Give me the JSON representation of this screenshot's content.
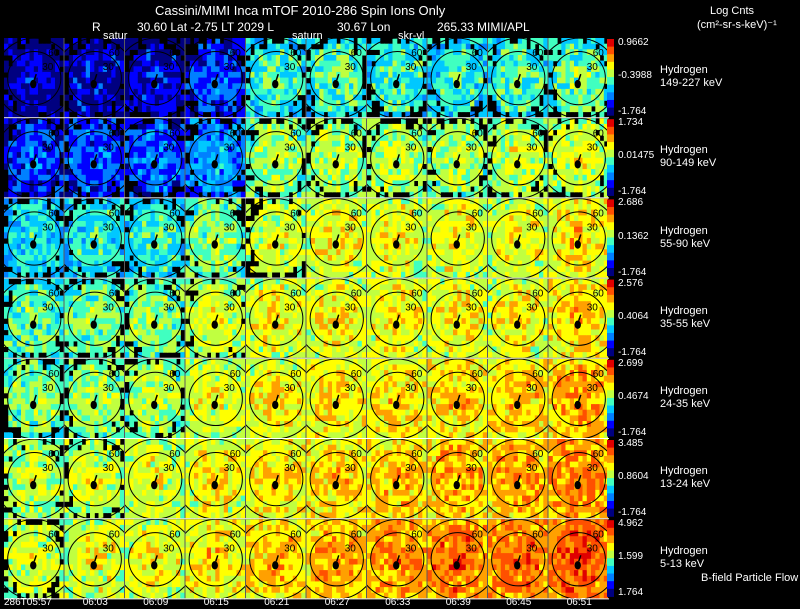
{
  "header": {
    "title": "Cassini/MIMI Inca mTOF  2010-286   Spin    Ions Only",
    "line2_r": "R",
    "line2_coords": "30.60 Lat -2.75 LT 2029 L",
    "line2_lon": "30.67 Lon",
    "line2_credit": "265.33  MIMI/APL",
    "overlay_saturn_1": "satur",
    "overlay_saturn_2": "saturn",
    "overlay_skr": "skr-vl"
  },
  "units": {
    "line1": "Log Cnts",
    "line2": "(cm²-sr-s-keV)⁻¹"
  },
  "footer_note": "B-field Particle Flow",
  "colors": {
    "scale": [
      "#000080",
      "#0000ff",
      "#0080ff",
      "#00c8ff",
      "#40ffc0",
      "#c0ff40",
      "#ffff00",
      "#ffa000",
      "#ff5000",
      "#e00000"
    ]
  },
  "chart_data": {
    "type": "heatmap",
    "description_units": "log counts (cm^2-sr-s-keV)^-1",
    "times": [
      "286T05:57",
      "06:03",
      "06:09",
      "06:15",
      "06:21",
      "06:27",
      "06:33",
      "06:39",
      "06:45",
      "06:51"
    ],
    "circle_labels": [
      "30",
      "60"
    ],
    "bands": [
      {
        "species": "Hydrogen",
        "energy": "149-227 keV",
        "max": "0.9662",
        "mid": "-0.3988",
        "min": "-1.764",
        "levels": [
          0.08,
          0.1,
          0.1,
          0.18,
          0.42,
          0.45,
          0.42,
          0.4,
          0.44,
          0.46
        ]
      },
      {
        "species": "Hydrogen",
        "energy": "90-149 keV",
        "max": "1.734",
        "mid": "0.01475",
        "min": "-1.764",
        "levels": [
          0.18,
          0.2,
          0.22,
          0.28,
          0.52,
          0.55,
          0.55,
          0.55,
          0.56,
          0.58
        ]
      },
      {
        "species": "Hydrogen",
        "energy": "55-90 keV",
        "max": "2.686",
        "mid": "0.1362",
        "min": "-1.764",
        "levels": [
          0.38,
          0.4,
          0.42,
          0.5,
          0.58,
          0.62,
          0.62,
          0.62,
          0.62,
          0.66
        ]
      },
      {
        "species": "Hydrogen",
        "energy": "35-55 keV",
        "max": "2.576",
        "mid": "0.4064",
        "min": "-1.764",
        "levels": [
          0.46,
          0.48,
          0.5,
          0.58,
          0.62,
          0.64,
          0.64,
          0.64,
          0.64,
          0.68
        ]
      },
      {
        "species": "Hydrogen",
        "energy": "24-35 keV",
        "max": "2.699",
        "mid": "0.4674",
        "min": "-1.764",
        "levels": [
          0.5,
          0.52,
          0.55,
          0.6,
          0.64,
          0.66,
          0.66,
          0.68,
          0.7,
          0.74
        ]
      },
      {
        "species": "Hydrogen",
        "energy": "13-24 keV",
        "max": "3.485",
        "mid": "0.8604",
        "min": "-1.764",
        "levels": [
          0.56,
          0.58,
          0.6,
          0.64,
          0.66,
          0.68,
          0.7,
          0.72,
          0.74,
          0.78
        ]
      },
      {
        "species": "Hydrogen",
        "energy": "5-13 keV",
        "max": "4.962",
        "mid": "1.599",
        "min": "1.764",
        "levels": [
          0.58,
          0.6,
          0.62,
          0.66,
          0.7,
          0.74,
          0.76,
          0.8,
          0.8,
          0.84
        ]
      }
    ]
  }
}
